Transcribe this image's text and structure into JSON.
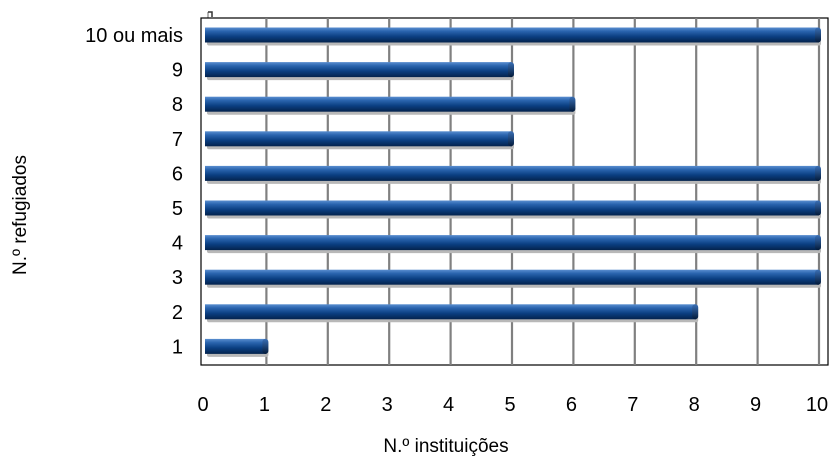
{
  "chart_data": {
    "type": "bar",
    "orientation": "horizontal",
    "categories": [
      "10 ou mais",
      "9",
      "8",
      "7",
      "6",
      "5",
      "4",
      "3",
      "2",
      "1"
    ],
    "values": [
      10,
      5,
      6,
      5,
      10,
      10,
      10,
      10,
      8,
      1
    ],
    "xlabel": "N.º instituições",
    "ylabel": "N.º refugiados",
    "xlim": [
      0,
      10
    ],
    "xticks": [
      "0",
      "1",
      "2",
      "3",
      "4",
      "5",
      "6",
      "7",
      "8",
      "9",
      "10"
    ],
    "grid": "vertical",
    "bar_color": "#0b3f82",
    "bar_highlight": "#3f78c2",
    "bar_shadow": "#05234b",
    "legend": "none"
  }
}
